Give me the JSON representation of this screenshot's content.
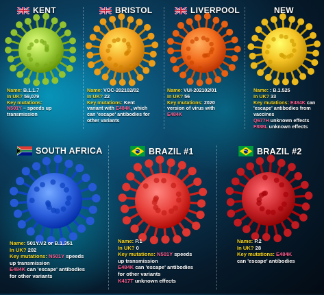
{
  "variants": [
    {
      "id": "kent",
      "title": "KENT",
      "flag": "uk",
      "name_label": "Name:",
      "name_value": "B.1.1.7",
      "uk_label": "In UK?",
      "uk_value": "59,079",
      "mut_label": "Key mutations:",
      "lines": [
        {
          "parts": [
            {
              "t": "N501Y",
              "c": "m"
            },
            {
              "t": " – speeds up",
              "c": ""
            }
          ]
        },
        {
          "parts": [
            {
              "t": "transmission",
              "c": ""
            }
          ]
        }
      ],
      "color": "#9ccc3a"
    },
    {
      "id": "bristol",
      "title": "BRISTOL",
      "flag": "uk",
      "name_label": "Name:",
      "name_value": "VOC-202102/02",
      "uk_label": "In UK?",
      "uk_value": "22",
      "mut_label": "Key mutations:",
      "mut_inline": "Kent",
      "lines": [
        {
          "parts": [
            {
              "t": "variant with ",
              "c": ""
            },
            {
              "t": "E484K",
              "c": "m"
            },
            {
              "t": ", which",
              "c": ""
            }
          ]
        },
        {
          "parts": [
            {
              "t": "can 'escape' antibodies for",
              "c": ""
            }
          ]
        },
        {
          "parts": [
            {
              "t": "other variants",
              "c": ""
            }
          ]
        }
      ],
      "color": "#f5a623"
    },
    {
      "id": "liverpool",
      "title": "LIVERPOOL",
      "flag": "uk",
      "name_label": "Name:",
      "name_value": "VUI-202102/01",
      "uk_label": "In UK?",
      "uk_value": "56",
      "mut_label": "Key mutations:",
      "mut_inline": "2020",
      "lines": [
        {
          "parts": [
            {
              "t": "version of virus with",
              "c": ""
            }
          ]
        },
        {
          "parts": [
            {
              "t": "E484K",
              "c": "m"
            }
          ]
        }
      ],
      "color": "#f26a1b"
    },
    {
      "id": "new",
      "title": "NEW",
      "flag": "",
      "name_label": "Name:",
      "name_value": ": B.1.525",
      "uk_label": "In UK?",
      "uk_value": "33",
      "mut_label": "Key mutations:",
      "mut_inline_m": "E484K",
      "mut_inline": "can",
      "lines": [
        {
          "parts": [
            {
              "t": "'escape' antibodies from",
              "c": ""
            }
          ]
        },
        {
          "parts": [
            {
              "t": "vaccines",
              "c": ""
            }
          ]
        },
        {
          "parts": [
            {
              "t": "Q677H",
              "c": "m"
            },
            {
              "t": " unknown effects",
              "c": ""
            }
          ]
        },
        {
          "parts": [
            {
              "t": "F888L",
              "c": "m"
            },
            {
              "t": " unknown effects",
              "c": ""
            }
          ]
        }
      ],
      "color": "#f5c325"
    },
    {
      "id": "south-africa",
      "title": "SOUTH AFRICA",
      "flag": "za",
      "name_label": "Name:",
      "name_value": "501Y.V2 or B.1.351",
      "uk_label": "In UK?",
      "uk_value": "202",
      "mut_label": "Key mutations:",
      "mut_inline_m": "N501Y",
      "mut_inline": "speeds",
      "lines": [
        {
          "parts": [
            {
              "t": "up transmission",
              "c": ""
            }
          ]
        },
        {
          "parts": [
            {
              "t": "E484K",
              "c": "m"
            },
            {
              "t": " can 'escape' antibodies",
              "c": ""
            }
          ]
        },
        {
          "parts": [
            {
              "t": "for other variants",
              "c": ""
            }
          ]
        }
      ],
      "color": "#2f63e0"
    },
    {
      "id": "brazil-1",
      "title": "BRAZIL #1",
      "flag": "br",
      "name_label": "Name:",
      "name_value": "P.1",
      "uk_label": "In UK?",
      "uk_value": "0",
      "mut_label": "Key mutations:",
      "mut_inline_m": "N501Y",
      "mut_inline": "speeds",
      "lines": [
        {
          "parts": [
            {
              "t": "up transmission",
              "c": ""
            }
          ]
        },
        {
          "parts": [
            {
              "t": "E484K",
              "c": "m"
            },
            {
              "t": " can 'escape' antibodies",
              "c": ""
            }
          ]
        },
        {
          "parts": [
            {
              "t": "for other variants",
              "c": ""
            }
          ]
        },
        {
          "parts": [
            {
              "t": "K417T",
              "c": "m"
            },
            {
              "t": " unknown effects",
              "c": ""
            }
          ]
        }
      ],
      "color": "#e8403a"
    },
    {
      "id": "brazil-2",
      "title": "BRAZIL #2",
      "flag": "br",
      "name_label": "Name:",
      "name_value": "P.2",
      "uk_label": "In UK?",
      "uk_value": "28",
      "mut_label": "Key mutations:",
      "mut_inline_m": "E484K",
      "lines": [
        {
          "parts": [
            {
              "t": "can 'escape' antibodies",
              "c": ""
            }
          ]
        }
      ],
      "color": "#c9252b"
    }
  ]
}
